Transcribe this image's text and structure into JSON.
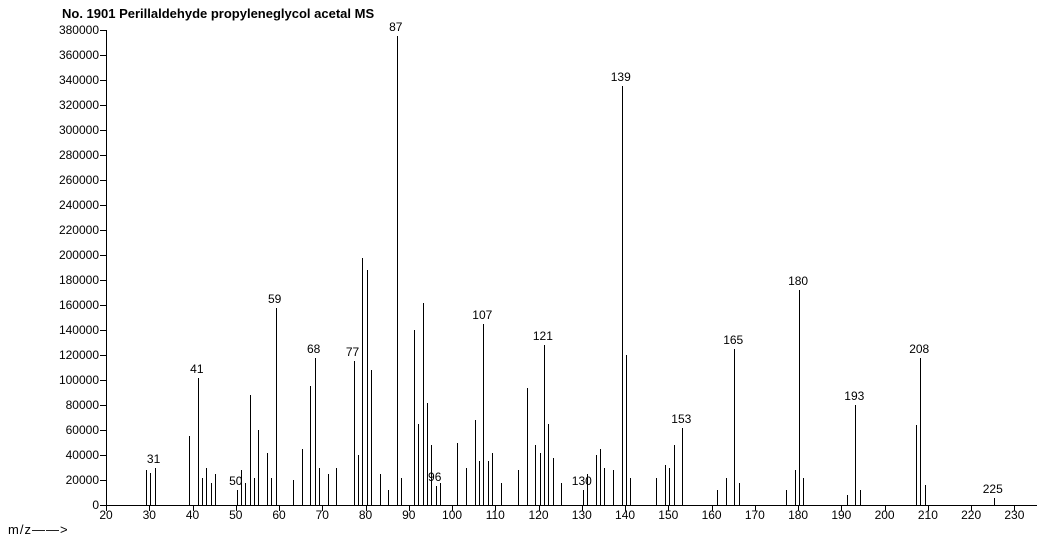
{
  "title": "No. 1901   Perillaldehyde propyleneglycol acetal   MS",
  "xlabel": "m/z——>",
  "chart": {
    "type": "mass-spectrum-bar",
    "background_color": "#ffffff",
    "axis_color": "#000000",
    "tick_fontsize": 12,
    "label_fontsize": 12,
    "title_fontsize": 13,
    "x": {
      "min": 20,
      "max": 235,
      "tick_step": 10
    },
    "y": {
      "min": 0,
      "max": 380000,
      "tick_step": 20000
    },
    "peaks": [
      {
        "mz": 29,
        "intensity": 28000
      },
      {
        "mz": 30,
        "intensity": 26000
      },
      {
        "mz": 31,
        "intensity": 30000,
        "label": "31"
      },
      {
        "mz": 39,
        "intensity": 55000
      },
      {
        "mz": 41,
        "intensity": 102000,
        "label": "41"
      },
      {
        "mz": 42,
        "intensity": 22000
      },
      {
        "mz": 43,
        "intensity": 30000
      },
      {
        "mz": 44,
        "intensity": 18000
      },
      {
        "mz": 45,
        "intensity": 25000
      },
      {
        "mz": 50,
        "intensity": 12000,
        "label": "50"
      },
      {
        "mz": 51,
        "intensity": 28000
      },
      {
        "mz": 52,
        "intensity": 18000
      },
      {
        "mz": 53,
        "intensity": 88000
      },
      {
        "mz": 54,
        "intensity": 22000
      },
      {
        "mz": 55,
        "intensity": 60000
      },
      {
        "mz": 57,
        "intensity": 42000
      },
      {
        "mz": 58,
        "intensity": 22000
      },
      {
        "mz": 59,
        "intensity": 158000,
        "label": "59"
      },
      {
        "mz": 63,
        "intensity": 20000
      },
      {
        "mz": 65,
        "intensity": 45000
      },
      {
        "mz": 67,
        "intensity": 95000
      },
      {
        "mz": 68,
        "intensity": 118000,
        "label": "68"
      },
      {
        "mz": 69,
        "intensity": 30000
      },
      {
        "mz": 71,
        "intensity": 25000
      },
      {
        "mz": 73,
        "intensity": 30000
      },
      {
        "mz": 77,
        "intensity": 115000,
        "label": "77"
      },
      {
        "mz": 78,
        "intensity": 40000
      },
      {
        "mz": 79,
        "intensity": 198000
      },
      {
        "mz": 80,
        "intensity": 188000
      },
      {
        "mz": 81,
        "intensity": 108000
      },
      {
        "mz": 83,
        "intensity": 25000
      },
      {
        "mz": 85,
        "intensity": 12000
      },
      {
        "mz": 87,
        "intensity": 375000,
        "label": "87"
      },
      {
        "mz": 88,
        "intensity": 22000
      },
      {
        "mz": 91,
        "intensity": 140000
      },
      {
        "mz": 92,
        "intensity": 65000
      },
      {
        "mz": 93,
        "intensity": 162000
      },
      {
        "mz": 94,
        "intensity": 82000
      },
      {
        "mz": 95,
        "intensity": 48000
      },
      {
        "mz": 96,
        "intensity": 15000,
        "label": "96"
      },
      {
        "mz": 97,
        "intensity": 18000
      },
      {
        "mz": 101,
        "intensity": 50000
      },
      {
        "mz": 103,
        "intensity": 30000
      },
      {
        "mz": 105,
        "intensity": 68000
      },
      {
        "mz": 106,
        "intensity": 35000
      },
      {
        "mz": 107,
        "intensity": 145000,
        "label": "107"
      },
      {
        "mz": 108,
        "intensity": 35000
      },
      {
        "mz": 109,
        "intensity": 42000
      },
      {
        "mz": 111,
        "intensity": 18000
      },
      {
        "mz": 115,
        "intensity": 28000
      },
      {
        "mz": 117,
        "intensity": 94000
      },
      {
        "mz": 119,
        "intensity": 48000
      },
      {
        "mz": 120,
        "intensity": 42000
      },
      {
        "mz": 121,
        "intensity": 128000,
        "label": "121"
      },
      {
        "mz": 122,
        "intensity": 65000
      },
      {
        "mz": 123,
        "intensity": 38000
      },
      {
        "mz": 125,
        "intensity": 18000
      },
      {
        "mz": 130,
        "intensity": 12000,
        "label": "130"
      },
      {
        "mz": 131,
        "intensity": 25000
      },
      {
        "mz": 133,
        "intensity": 40000
      },
      {
        "mz": 134,
        "intensity": 45000
      },
      {
        "mz": 135,
        "intensity": 30000
      },
      {
        "mz": 137,
        "intensity": 28000
      },
      {
        "mz": 139,
        "intensity": 335000,
        "label": "139"
      },
      {
        "mz": 140,
        "intensity": 120000
      },
      {
        "mz": 141,
        "intensity": 22000
      },
      {
        "mz": 147,
        "intensity": 22000
      },
      {
        "mz": 149,
        "intensity": 32000
      },
      {
        "mz": 150,
        "intensity": 30000
      },
      {
        "mz": 151,
        "intensity": 48000
      },
      {
        "mz": 153,
        "intensity": 62000,
        "label": "153"
      },
      {
        "mz": 161,
        "intensity": 12000
      },
      {
        "mz": 163,
        "intensity": 22000
      },
      {
        "mz": 165,
        "intensity": 125000,
        "label": "165"
      },
      {
        "mz": 166,
        "intensity": 18000
      },
      {
        "mz": 177,
        "intensity": 12000
      },
      {
        "mz": 179,
        "intensity": 28000
      },
      {
        "mz": 180,
        "intensity": 172000,
        "label": "180"
      },
      {
        "mz": 181,
        "intensity": 22000
      },
      {
        "mz": 191,
        "intensity": 8000
      },
      {
        "mz": 193,
        "intensity": 80000,
        "label": "193"
      },
      {
        "mz": 194,
        "intensity": 12000
      },
      {
        "mz": 207,
        "intensity": 64000
      },
      {
        "mz": 208,
        "intensity": 118000,
        "label": "208"
      },
      {
        "mz": 209,
        "intensity": 16000
      },
      {
        "mz": 225,
        "intensity": 6000,
        "label": "225"
      }
    ]
  }
}
